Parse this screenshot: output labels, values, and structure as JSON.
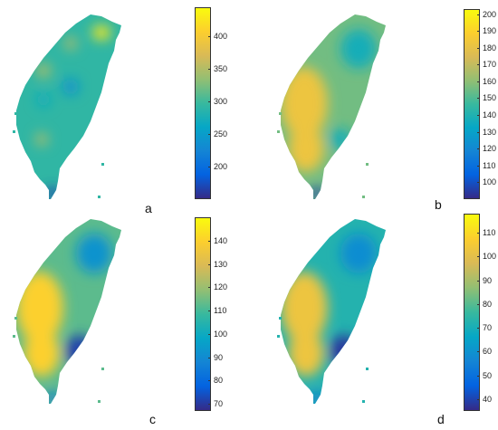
{
  "chart_data": [
    {
      "type": "heatmap",
      "panel_label": "a",
      "colorbar": {
        "min": 150,
        "max": 445,
        "ticks": [
          200,
          250,
          300,
          350,
          400
        ]
      },
      "colormap": "parula",
      "map_levels": {
        "background": 0.48,
        "north_hot": 0.95,
        "west_spots": 0.68,
        "south_cold": 0.05,
        "inner_cool": 0.3
      }
    },
    {
      "type": "heatmap",
      "panel_label": "b",
      "colorbar": {
        "min": 90,
        "max": 203,
        "ticks": [
          100,
          110,
          120,
          130,
          140,
          150,
          160,
          170,
          180,
          190,
          200
        ]
      },
      "colormap": "parula",
      "map_levels": {
        "background": 0.58,
        "west_warm": 0.82,
        "east_cool": 0.42,
        "south_cold": 0.05
      }
    },
    {
      "type": "heatmap",
      "panel_label": "c",
      "colorbar": {
        "min": 67,
        "max": 150,
        "ticks": [
          70,
          80,
          90,
          100,
          110,
          120,
          130,
          140
        ]
      },
      "colormap": "parula",
      "map_levels": {
        "background": 0.55,
        "west_warm": 0.88,
        "east_cool": 0.3,
        "southeast_cold": 0.05
      }
    },
    {
      "type": "heatmap",
      "panel_label": "d",
      "colorbar": {
        "min": 35,
        "max": 118,
        "ticks": [
          40,
          50,
          60,
          70,
          80,
          90,
          100,
          110
        ]
      },
      "colormap": "parula",
      "map_levels": {
        "background": 0.45,
        "west_warm": 0.82,
        "east_cool": 0.28,
        "southeast_cold": 0.03
      }
    }
  ],
  "colors": {
    "parula": [
      "#352a87",
      "#0363e1",
      "#1485d4",
      "#06a7c6",
      "#38b99e",
      "#92bf73",
      "#d9ba56",
      "#fcce2e",
      "#f9fb0e"
    ]
  }
}
